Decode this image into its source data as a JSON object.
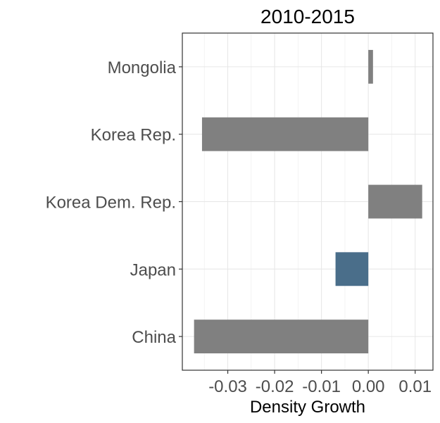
{
  "chart_data": {
    "type": "bar",
    "orientation": "horizontal",
    "title": "2010-2015",
    "xlabel": "Density Growth",
    "ylabel": "",
    "categories": [
      "Mongolia",
      "Korea Rep.",
      "Korea Dem. Rep.",
      "Japan",
      "China"
    ],
    "values": [
      0.001,
      -0.0355,
      0.0115,
      -0.007,
      -0.0372
    ],
    "highlight": "Japan",
    "xlim": [
      -0.0397,
      0.0138
    ],
    "xticks": [
      -0.03,
      -0.02,
      -0.01,
      0.0,
      0.01
    ],
    "xtick_labels": [
      "-0.03",
      "-0.02",
      "-0.01",
      "0.00",
      "0.01"
    ],
    "grid": true,
    "colors": {
      "default": "#808080",
      "highlight": "#4a6e8a"
    }
  }
}
